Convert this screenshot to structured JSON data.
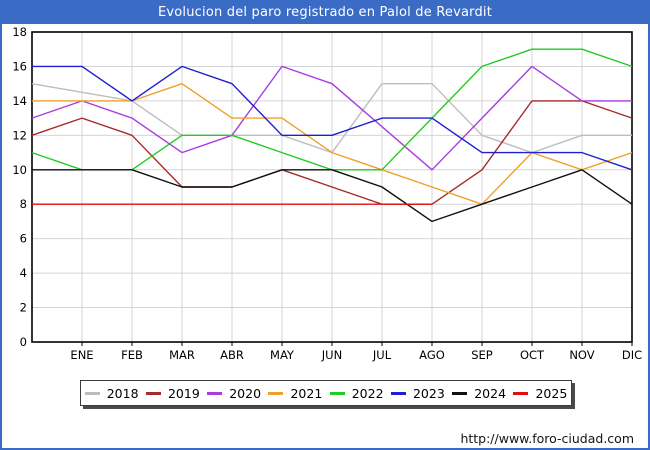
{
  "window": {
    "title": "Evolucion del paro registrado en Palol de Revardit",
    "footer_url": "http://www.foro-ciudad.com"
  },
  "chart_data": {
    "type": "line",
    "title": "Evolucion del paro registrado en Palol de Revardit",
    "x_categories": [
      "ENE",
      "FEB",
      "MAR",
      "ABR",
      "MAY",
      "JUN",
      "JUL",
      "AGO",
      "SEP",
      "OCT",
      "NOV",
      "DIC"
    ],
    "ylim": [
      0,
      18
    ],
    "ytick_step": 2,
    "grid": true,
    "legend_position": "bottom",
    "series": [
      {
        "name": "2018",
        "color": "#BDBDBD",
        "values": [
          15,
          14.5,
          14,
          12,
          12,
          12,
          11,
          15,
          15,
          12,
          11,
          12,
          12
        ]
      },
      {
        "name": "2019",
        "color": "#A62A2A",
        "values": [
          12,
          13,
          12,
          9,
          9,
          10,
          9,
          8,
          8,
          10,
          14,
          14,
          13
        ]
      },
      {
        "name": "2020",
        "color": "#A93BE0",
        "values": [
          13,
          14,
          13,
          11,
          12,
          16,
          15,
          12.5,
          10,
          13,
          16,
          14,
          14
        ]
      },
      {
        "name": "2021",
        "color": "#F0A028",
        "values": [
          14,
          14,
          14,
          15,
          13,
          13,
          11,
          10,
          9,
          8,
          11,
          10,
          11
        ]
      },
      {
        "name": "2022",
        "color": "#22CC22",
        "values": [
          11,
          10,
          10,
          12,
          12,
          11,
          10,
          10,
          13,
          16,
          17,
          17,
          16
        ]
      },
      {
        "name": "2023",
        "color": "#1F1FD0",
        "values": [
          16,
          16,
          14,
          16,
          15,
          12,
          12,
          13,
          13,
          11,
          11,
          11,
          10
        ]
      },
      {
        "name": "2024",
        "color": "#101010",
        "values": [
          10,
          10,
          10,
          9,
          9,
          10,
          10,
          9,
          7,
          8,
          9,
          10,
          8
        ]
      },
      {
        "name": "2025",
        "color": "#E01010",
        "values": [
          8,
          8,
          8,
          8,
          8,
          8,
          8,
          8,
          8
        ]
      }
    ]
  },
  "colors": {
    "frame_blue": "#3B6CC5",
    "grid": "#D4D4D4",
    "axis": "#000000"
  }
}
